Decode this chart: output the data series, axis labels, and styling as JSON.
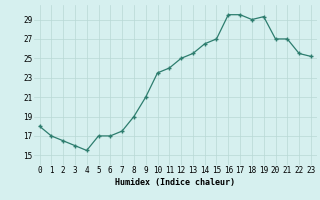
{
  "x": [
    0,
    1,
    2,
    3,
    4,
    5,
    6,
    7,
    8,
    9,
    10,
    11,
    12,
    13,
    14,
    15,
    16,
    17,
    18,
    19,
    20,
    21,
    22,
    23
  ],
  "y": [
    18.0,
    17.0,
    16.5,
    16.0,
    15.5,
    17.0,
    17.0,
    17.5,
    19.0,
    21.0,
    23.5,
    24.0,
    25.0,
    25.5,
    26.5,
    27.0,
    29.5,
    29.5,
    29.0,
    29.3,
    27.0,
    27.0,
    25.5,
    25.2
  ],
  "line_color": "#2d7d6e",
  "marker": "+",
  "marker_size": 3,
  "marker_lw": 1.0,
  "bg_color": "#d6f0ef",
  "grid_color": "#b8d8d5",
  "xlabel": "Humidex (Indice chaleur)",
  "xlim": [
    -0.5,
    23.5
  ],
  "ylim": [
    14.0,
    30.5
  ],
  "yticks": [
    15,
    17,
    19,
    21,
    23,
    25,
    27,
    29
  ],
  "xticks": [
    0,
    1,
    2,
    3,
    4,
    5,
    6,
    7,
    8,
    9,
    10,
    11,
    12,
    13,
    14,
    15,
    16,
    17,
    18,
    19,
    20,
    21,
    22,
    23
  ],
  "xlabel_fontsize": 6.0,
  "tick_fontsize": 5.5,
  "line_width": 0.9
}
